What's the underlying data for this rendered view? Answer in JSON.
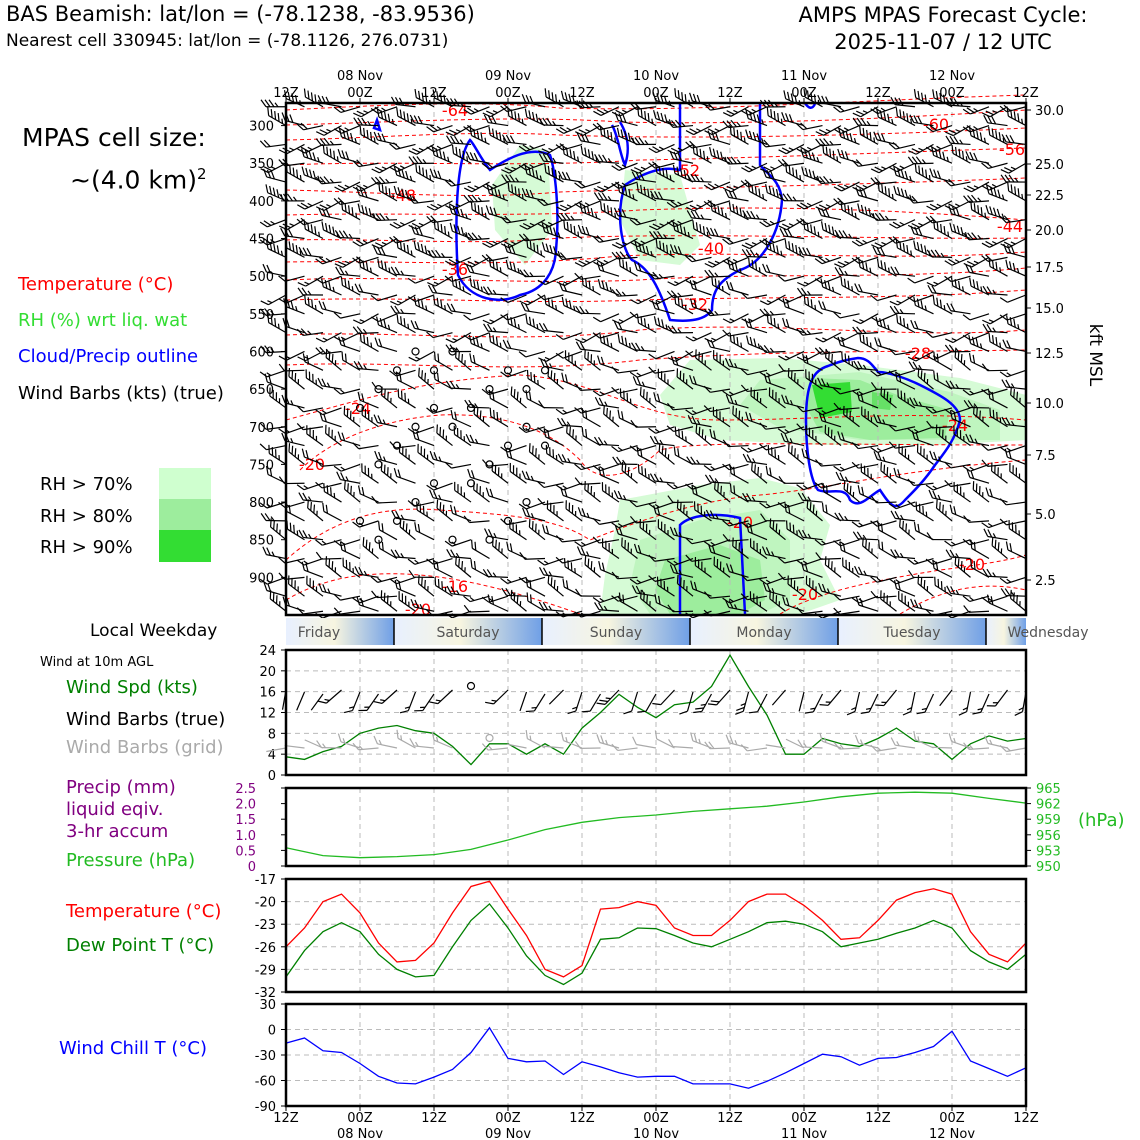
{
  "header": {
    "title": "BAS Beamish: lat/lon = (-78.1238, -83.9536)",
    "subtitle": "Nearest cell 330945: lat/lon = (-78.1126, 276.0731)",
    "cycle_line1": "AMPS MPAS Forecast Cycle:",
    "cycle_line2": "2025-11-07 / 12 UTC"
  },
  "cell_size": {
    "line1": "MPAS cell size:",
    "line2": "~(4.0 km)",
    "exponent": "2"
  },
  "legend": {
    "temperature": "Temperature (°C)",
    "rh": "RH (%) wrt liq. wat",
    "cloud": "Cloud/Precip outline",
    "wind": "Wind Barbs (kts) (true)",
    "rh_levels": [
      {
        "label": "RH > 70%",
        "color": "#cfffcf"
      },
      {
        "label": "RH > 80%",
        "color": "#9ded9d"
      },
      {
        "label": "RH > 90%",
        "color": "#33dd33"
      }
    ]
  },
  "colors": {
    "temperature": "#ff0000",
    "dewpoint": "#008000",
    "wind_speed": "#008000",
    "pressure": "#22bb22",
    "precip": "#800080",
    "wind_chill": "#0000ff",
    "cloud_outline": "#0000ff",
    "grid_barb": "#aaaaaa"
  },
  "time_axis": {
    "ticks": [
      "12Z",
      "00Z",
      "12Z",
      "00Z",
      "12Z",
      "00Z",
      "12Z",
      "00Z",
      "12Z",
      "00Z",
      "12Z"
    ],
    "dates": [
      "08 Nov",
      "09 Nov",
      "10 Nov",
      "11 Nov",
      "12 Nov"
    ]
  },
  "weekday": {
    "label": "Local Weekday",
    "days": [
      "Friday",
      "Saturday",
      "Sunday",
      "Monday",
      "Tuesday",
      "Wednesday"
    ]
  },
  "panels": {
    "wind10m_caption": "Wind at 10m AGL",
    "wind_speed_label": "Wind Spd (kts)",
    "wind_barbs_true_label": "Wind Barbs (true)",
    "wind_barbs_grid_label": "Wind Barbs (grid)",
    "precip_label_1": "Precip (mm)",
    "precip_label_2": "liquid eqiv.",
    "precip_label_3": "3-hr accum",
    "pressure_label": "Pressure (hPa)",
    "pressure_unit": "(hPa)",
    "temp_label": "Temperature (°C)",
    "dewpoint_label": "Dew Point T (°C)",
    "windchill_label": "Wind Chill T (°C)"
  },
  "chart_data": [
    {
      "type": "contour",
      "name": "time-height cross-section",
      "x_axis": "forecast time, 2025-11-07 12Z to 2025-11-12 12Z",
      "y_left": {
        "label": "",
        "unit": "hPa",
        "ticks": [
          300,
          350,
          400,
          450,
          500,
          550,
          600,
          650,
          700,
          750,
          800,
          850,
          900
        ],
        "range": [
          950,
          270
        ]
      },
      "y_right": {
        "label": "kft MSL",
        "ticks": [
          "30.0",
          "25.0",
          "22.5",
          "20.0",
          "17.5",
          "15.0",
          "12.5",
          "10.0",
          "7.5",
          "5.0",
          "2.5"
        ]
      },
      "temperature_contour_labels": [
        "-64",
        "-60",
        "-56",
        "-52",
        "-48",
        "-44",
        "-40",
        "-36",
        "-32",
        "-28",
        "-24",
        "-24",
        "-20",
        "-20",
        "-20",
        "-20",
        "-16",
        "-20"
      ]
    },
    {
      "type": "line",
      "name": "10m wind speed",
      "ylim": [
        0,
        24
      ],
      "yticks": [
        0,
        4,
        8,
        12,
        16,
        20,
        24
      ],
      "x_hours": [
        0,
        3,
        6,
        9,
        12,
        15,
        18,
        21,
        24,
        27,
        30,
        33,
        36,
        39,
        42,
        45,
        48,
        51,
        54,
        57,
        60,
        63,
        66,
        69,
        72,
        75,
        78,
        81,
        84,
        87,
        90,
        93,
        96,
        99,
        102,
        105,
        108,
        111,
        114,
        117,
        120
      ],
      "values": [
        3.5,
        3,
        4.5,
        5.5,
        8,
        9,
        9.5,
        8.5,
        8,
        5.5,
        2,
        6,
        6,
        4,
        6,
        4,
        9,
        12,
        15.5,
        13,
        11,
        13.5,
        14,
        17,
        23,
        17,
        11.5,
        4,
        4,
        7,
        6,
        5.5,
        7,
        9,
        6.5,
        6,
        3,
        6,
        7.5,
        6.5,
        7
      ]
    },
    {
      "type": "line",
      "name": "pressure",
      "ylim": [
        950,
        965
      ],
      "yticks_right": [
        950,
        953,
        956,
        959,
        962,
        965
      ],
      "yticks_left_precip": [
        0,
        0.5,
        1.0,
        1.5,
        2.0,
        2.5
      ],
      "x_hours": [
        0,
        6,
        12,
        18,
        24,
        30,
        36,
        42,
        48,
        54,
        60,
        66,
        72,
        78,
        84,
        90,
        96,
        102,
        108,
        114,
        120
      ],
      "values": [
        953.5,
        952,
        951.6,
        951.8,
        952.2,
        953.2,
        955,
        957,
        958.4,
        959.3,
        959.8,
        960.5,
        961,
        961.5,
        962.3,
        963.3,
        964,
        964.2,
        964,
        963,
        962.1
      ],
      "precip_values": [
        0,
        0,
        0,
        0,
        0,
        0,
        0,
        0,
        0,
        0,
        0,
        0,
        0,
        0,
        0,
        0,
        0,
        0,
        0,
        0,
        0
      ]
    },
    {
      "type": "line",
      "name": "temperature and dew point",
      "ylim": [
        -32,
        -17
      ],
      "yticks": [
        -32,
        -29,
        -26,
        -23,
        -20,
        -17
      ],
      "x_hours": [
        0,
        3,
        6,
        9,
        12,
        15,
        18,
        21,
        24,
        27,
        30,
        33,
        36,
        39,
        42,
        45,
        48,
        51,
        54,
        57,
        60,
        63,
        66,
        69,
        72,
        75,
        78,
        81,
        84,
        87,
        90,
        93,
        96,
        99,
        102,
        105,
        108,
        111,
        114,
        117,
        120
      ],
      "series": [
        {
          "name": "Temperature",
          "values": [
            -26,
            -23.5,
            -20,
            -19,
            -21.5,
            -25.5,
            -28,
            -27.8,
            -25.5,
            -21.5,
            -18,
            -17.3,
            -21,
            -24.5,
            -29,
            -30,
            -28.5,
            -21,
            -20.8,
            -20,
            -20.5,
            -23.5,
            -24.5,
            -24.5,
            -22.5,
            -20,
            -19,
            -19,
            -20.5,
            -22.5,
            -25,
            -24.8,
            -22.5,
            -19.8,
            -18.8,
            -18.3,
            -19,
            -24,
            -27,
            -28,
            -25.5
          ]
        },
        {
          "name": "Dew Point",
          "values": [
            -30,
            -26.5,
            -24,
            -22.8,
            -24,
            -27,
            -29,
            -30,
            -29.8,
            -26,
            -22.5,
            -20.3,
            -23.5,
            -27.2,
            -29.8,
            -31,
            -29.5,
            -25,
            -24.8,
            -23.5,
            -23.6,
            -24.5,
            -25.5,
            -26,
            -25,
            -24,
            -22.8,
            -22.6,
            -23,
            -24,
            -26,
            -25.5,
            -25,
            -24.2,
            -23.5,
            -22.5,
            -23.5,
            -26.5,
            -28,
            -29,
            -27
          ]
        }
      ]
    },
    {
      "type": "line",
      "name": "wind chill",
      "ylim": [
        -90,
        30
      ],
      "yticks": [
        -90,
        -60,
        -30,
        0,
        30
      ],
      "x_hours": [
        0,
        3,
        6,
        9,
        12,
        15,
        18,
        21,
        24,
        27,
        30,
        33,
        36,
        39,
        42,
        45,
        48,
        51,
        54,
        57,
        60,
        63,
        66,
        69,
        72,
        75,
        78,
        81,
        84,
        87,
        90,
        93,
        96,
        99,
        102,
        105,
        108,
        111,
        114,
        117,
        120
      ],
      "values": [
        -16,
        -10,
        -25,
        -27,
        -40,
        -55,
        -63,
        -64,
        -56,
        -47,
        -27,
        2,
        -34,
        -38,
        -37,
        -53,
        -38,
        -44,
        -51,
        -56,
        -55,
        -55,
        -64,
        -64,
        -64,
        -69,
        -61,
        -51,
        -40,
        -29,
        -32,
        -42,
        -34,
        -33,
        -27,
        -20,
        -2,
        -37,
        -46,
        -55,
        -45
      ]
    }
  ]
}
